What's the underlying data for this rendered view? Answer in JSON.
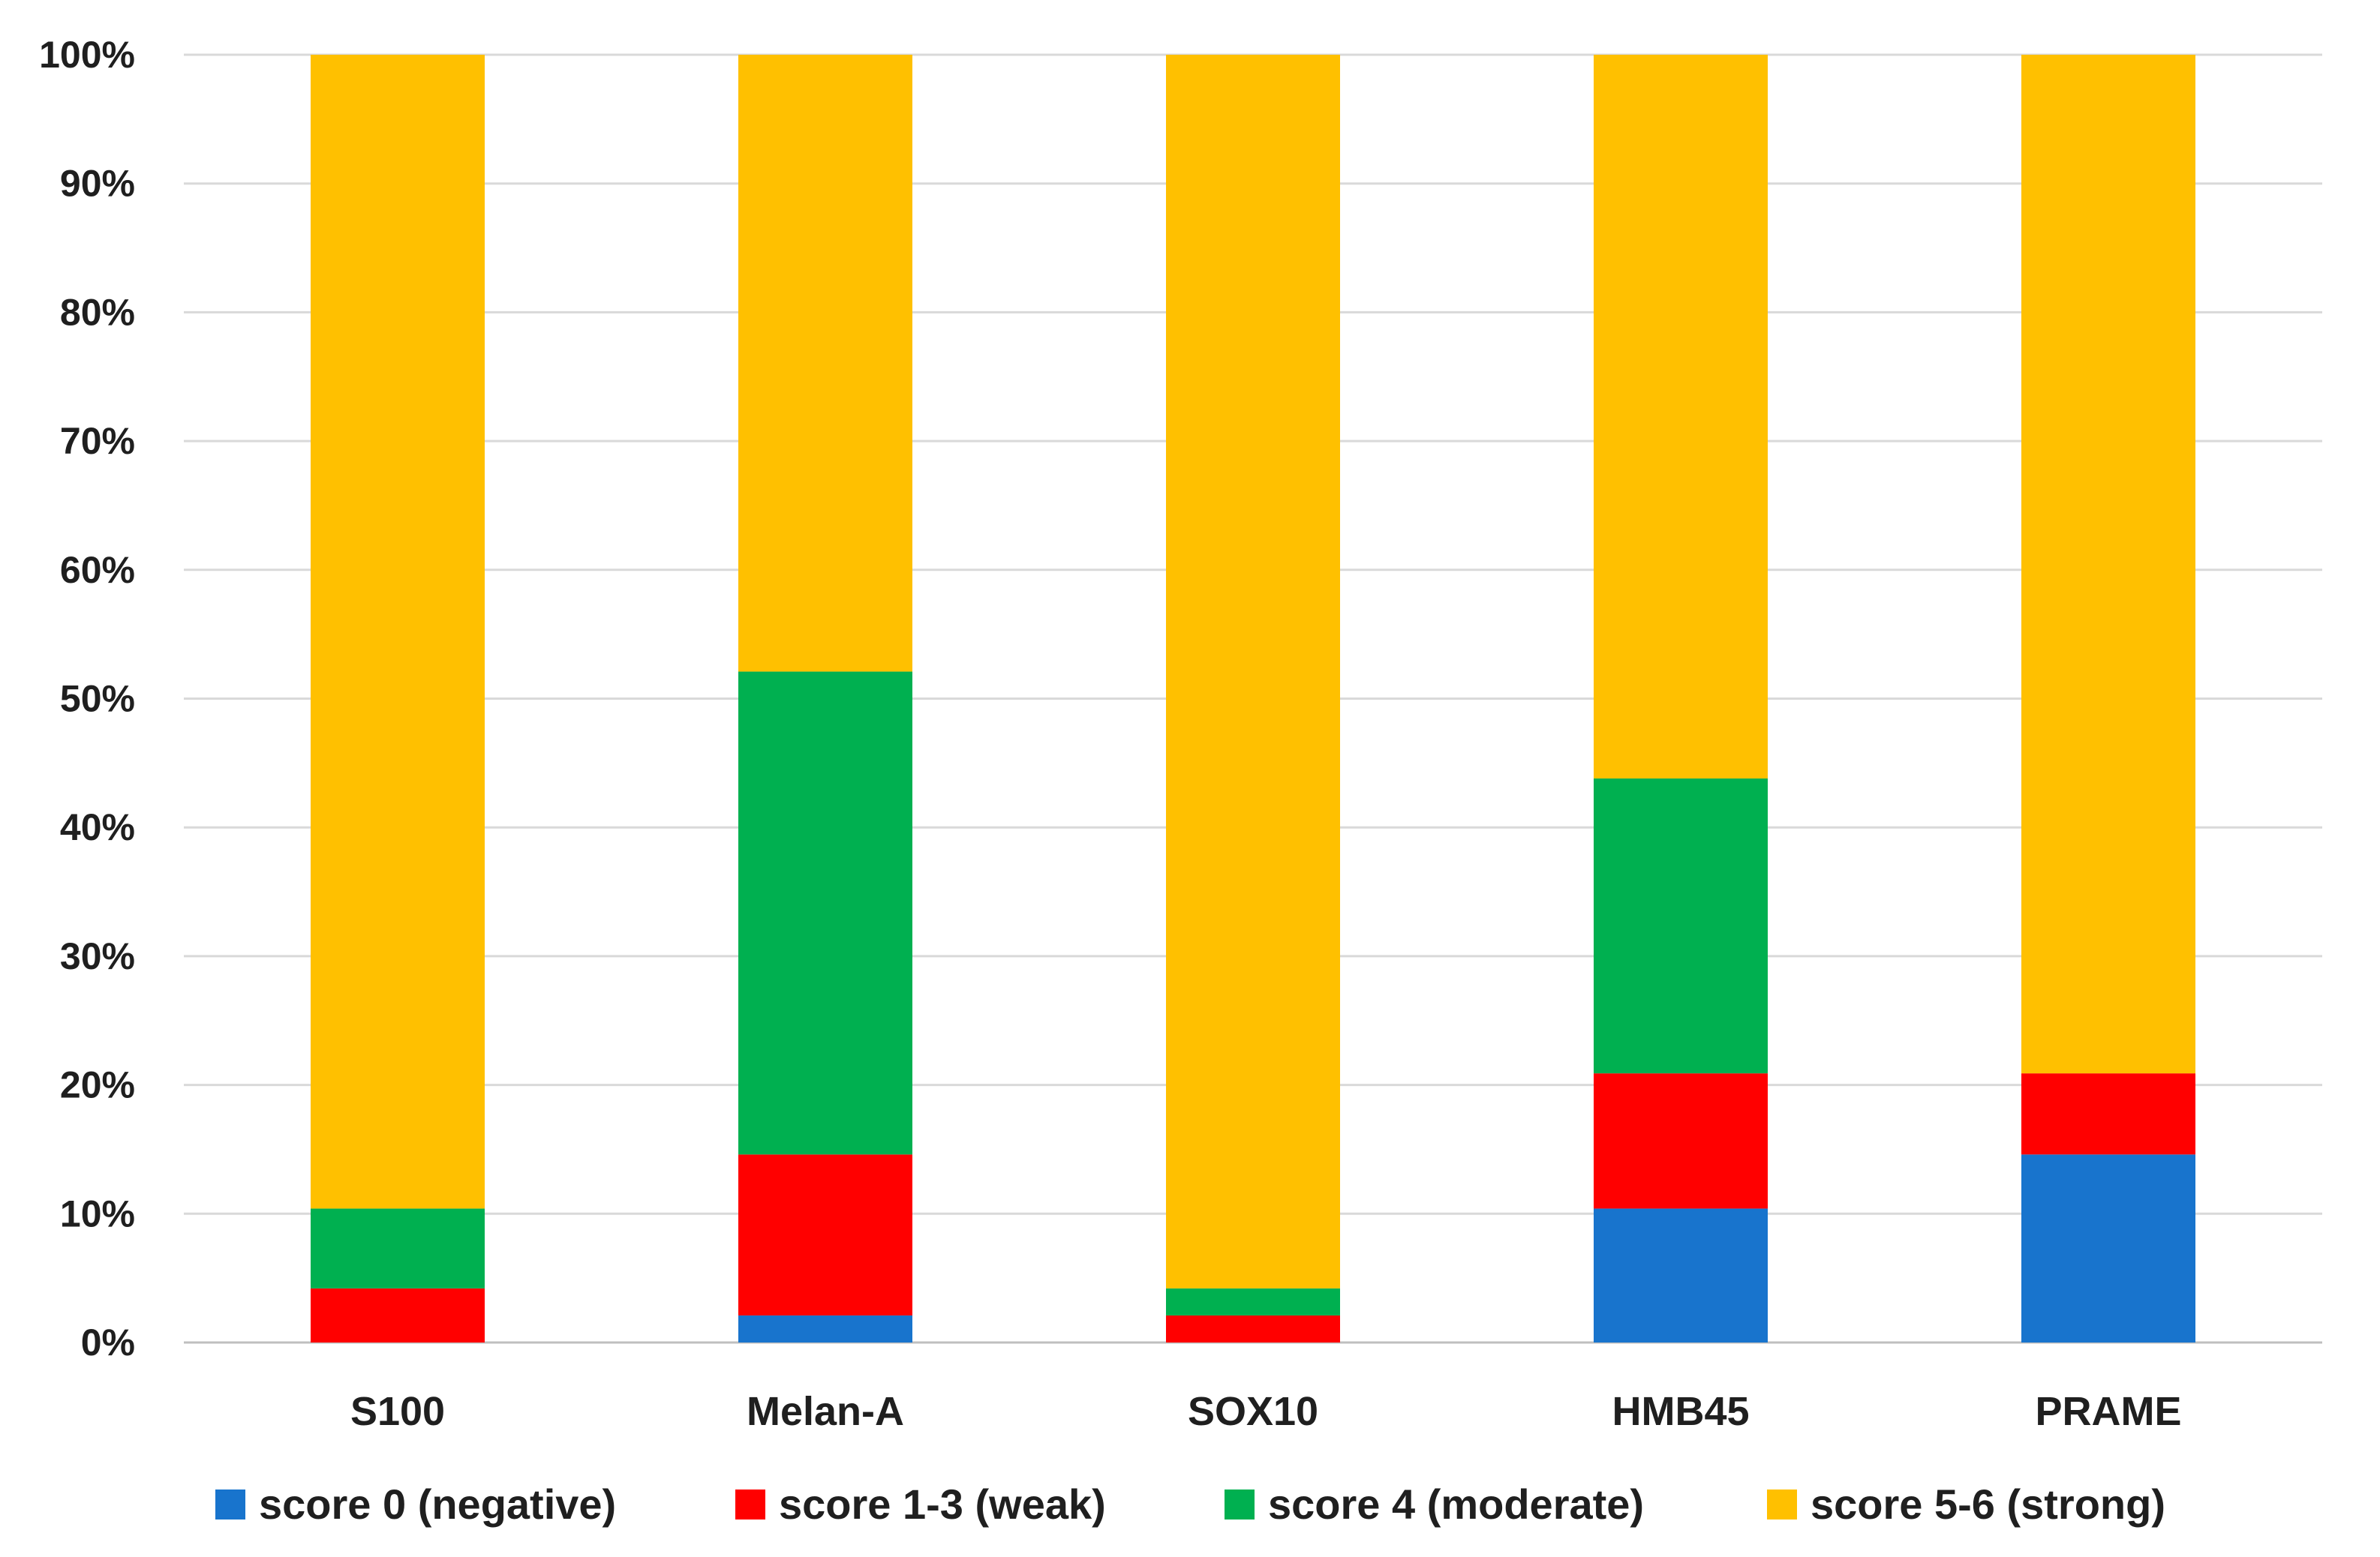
{
  "chart_data": {
    "type": "bar",
    "stacked": true,
    "title": "",
    "xlabel": "",
    "ylabel": "",
    "categories": [
      "S100",
      "Melan-A",
      "SOX10",
      "HMB45",
      "PRAME"
    ],
    "series": [
      {
        "name": "score 0 (negative)",
        "color": "#1874CD",
        "values": [
          0,
          2.1,
          0,
          10.4,
          14.6
        ]
      },
      {
        "name": "score 1-3 (weak)",
        "color": "#FF0000",
        "values": [
          4.2,
          12.5,
          2.1,
          10.5,
          6.3
        ]
      },
      {
        "name": "score 4 (moderate)",
        "color": "#00B050",
        "values": [
          6.2,
          37.5,
          2.1,
          22.9,
          0
        ]
      },
      {
        "name": "score 5-6 (strong)",
        "color": "#FFC000",
        "values": [
          89.6,
          47.9,
          95.8,
          56.2,
          79.1
        ]
      }
    ],
    "ylim": [
      0,
      100
    ],
    "yticks": [
      "0%",
      "10%",
      "20%",
      "30%",
      "40%",
      "50%",
      "60%",
      "70%",
      "80%",
      "90%",
      "100%"
    ],
    "grid": true,
    "legend_position": "bottom"
  }
}
